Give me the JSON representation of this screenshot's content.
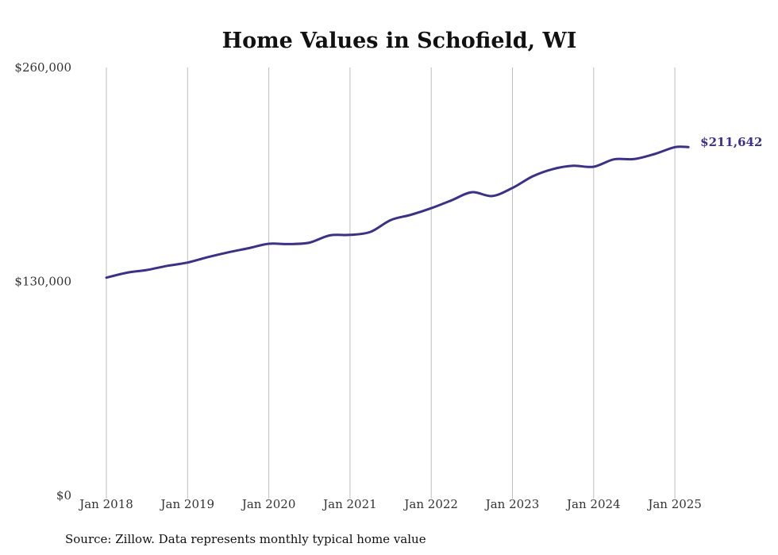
{
  "chart_data": {
    "type": "line",
    "title": "Home Values in Schofield, WI",
    "source": "Source: Zillow. Data represents monthly typical home value",
    "yticks": [
      {
        "value": 260000,
        "label": "$260,000"
      },
      {
        "value": 130000,
        "label": "$130,000"
      },
      {
        "value": 0,
        "label": "$0"
      }
    ],
    "ylim": [
      0,
      260000
    ],
    "xticks": [
      {
        "value": "2018-01",
        "label": "Jan 2018"
      },
      {
        "value": "2019-01",
        "label": "Jan 2019"
      },
      {
        "value": "2020-01",
        "label": "Jan 2020"
      },
      {
        "value": "2021-01",
        "label": "Jan 2021"
      },
      {
        "value": "2022-01",
        "label": "Jan 2022"
      },
      {
        "value": "2023-01",
        "label": "Jan 2023"
      },
      {
        "value": "2024-01",
        "label": "Jan 2024"
      },
      {
        "value": "2025-01",
        "label": "Jan 2025"
      }
    ],
    "xlim": [
      "2018-01",
      "2025-04"
    ],
    "grid": "vertical",
    "series": [
      {
        "color": "#3b2f8f",
        "end_label": "$211,642",
        "points": [
          [
            "2018-01",
            132300
          ],
          [
            "2018-04",
            135300
          ],
          [
            "2018-07",
            137000
          ],
          [
            "2018-10",
            139500
          ],
          [
            "2019-01",
            141500
          ],
          [
            "2019-04",
            144800
          ],
          [
            "2019-07",
            147700
          ],
          [
            "2019-10",
            150200
          ],
          [
            "2020-01",
            152900
          ],
          [
            "2020-04",
            152700
          ],
          [
            "2020-07",
            153600
          ],
          [
            "2020-10",
            158000
          ],
          [
            "2021-01",
            158300
          ],
          [
            "2021-04",
            160100
          ],
          [
            "2021-07",
            167300
          ],
          [
            "2021-10",
            170500
          ],
          [
            "2022-01",
            174500
          ],
          [
            "2022-04",
            179300
          ],
          [
            "2022-07",
            184200
          ],
          [
            "2022-10",
            181900
          ],
          [
            "2023-01",
            186800
          ],
          [
            "2023-04",
            193900
          ],
          [
            "2023-07",
            198300
          ],
          [
            "2023-10",
            200300
          ],
          [
            "2024-01",
            199700
          ],
          [
            "2024-04",
            204200
          ],
          [
            "2024-07",
            204400
          ],
          [
            "2024-10",
            207400
          ],
          [
            "2025-01",
            211600
          ],
          [
            "2025-03",
            211642
          ]
        ]
      }
    ]
  }
}
